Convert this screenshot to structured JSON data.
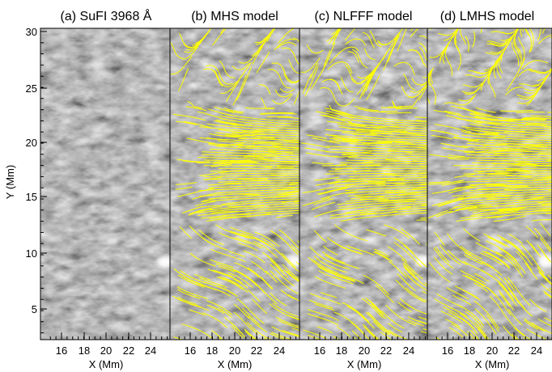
{
  "figure": {
    "panels": [
      {
        "title": "(a) SuFI 3968 Å",
        "overlay": false
      },
      {
        "title": "(b) MHS model",
        "overlay": true
      },
      {
        "title": "(c) NLFFF model",
        "overlay": true
      },
      {
        "title": "(d) LMHS model",
        "overlay": true
      }
    ],
    "ylabel": "Y (Mm)",
    "xlabel": "X (Mm)",
    "x_ticks": [
      "16",
      "18",
      "20",
      "22",
      "24"
    ],
    "y_ticks": [
      "5",
      "10",
      "15",
      "20",
      "25",
      "30"
    ],
    "colors": {
      "field_lines": "#ffff00",
      "background_gray_dark": "#2e2e2e",
      "background_gray_light": "#9a9a9a",
      "bright_point": "#ffffff"
    }
  },
  "chart_data": [
    {
      "type": "heatmap",
      "title": "(a) SuFI 3968 Å",
      "xlabel": "X (Mm)",
      "ylabel": "Y (Mm)",
      "xlim": [
        14.5,
        25.6
      ],
      "ylim": [
        2.3,
        30.2
      ],
      "x_ticks": [
        16,
        18,
        20,
        22,
        24
      ],
      "y_ticks": [
        5,
        10,
        15,
        20,
        25,
        30
      ],
      "colormap": "gray"
    },
    {
      "type": "heatmap",
      "title": "(b) MHS model",
      "xlabel": "X (Mm)",
      "xlim": [
        14.5,
        25.6
      ],
      "ylim": [
        2.3,
        30.2
      ],
      "x_ticks": [
        16,
        18,
        20,
        22,
        24
      ],
      "colormap": "gray",
      "overlay": "yellow magnetic field lines"
    },
    {
      "type": "heatmap",
      "title": "(c) NLFFF model",
      "xlabel": "X (Mm)",
      "xlim": [
        14.5,
        25.6
      ],
      "ylim": [
        2.3,
        30.2
      ],
      "x_ticks": [
        16,
        18,
        20,
        22,
        24
      ],
      "colormap": "gray",
      "overlay": "yellow magnetic field lines"
    },
    {
      "type": "heatmap",
      "title": "(d) LMHS model",
      "xlabel": "X (Mm)",
      "xlim": [
        14.5,
        25.6
      ],
      "ylim": [
        2.3,
        30.2
      ],
      "x_ticks": [
        16,
        18,
        20,
        22,
        24
      ],
      "colormap": "gray",
      "overlay": "yellow magnetic field lines"
    }
  ]
}
